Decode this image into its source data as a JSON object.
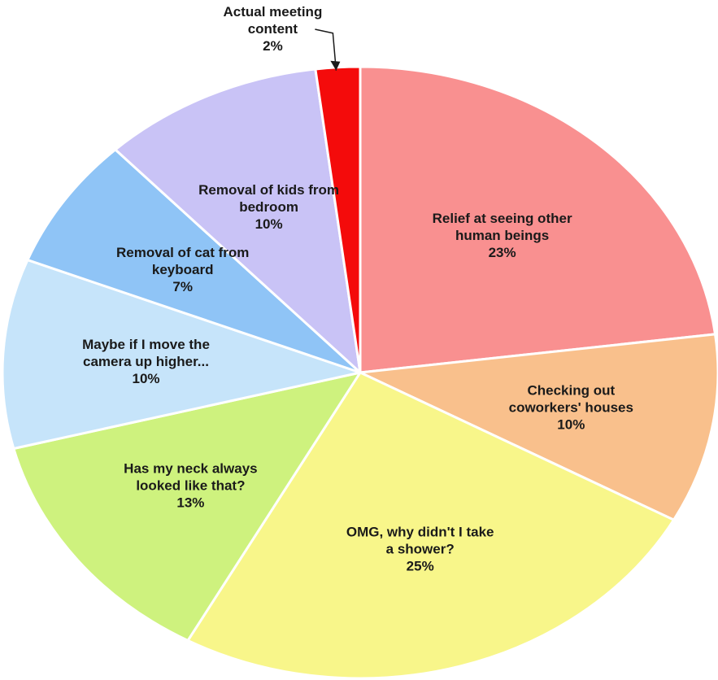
{
  "chart_data": {
    "type": "pie",
    "title": "",
    "start_angle_deg": 0,
    "direction": "clockwise",
    "slices": [
      {
        "label_lines": [
          "Relief at seeing other",
          "human beings"
        ],
        "percent_label": "23%",
        "value": 23,
        "color": "#F99090"
      },
      {
        "label_lines": [
          "Checking out",
          "coworkers' houses"
        ],
        "percent_label": "10%",
        "value": 10,
        "color": "#F9C08C"
      },
      {
        "label_lines": [
          "OMG, why didn't I take",
          "a shower?"
        ],
        "percent_label": "25%",
        "value": 25,
        "color": "#F8F68A"
      },
      {
        "label_lines": [
          "Has my neck always",
          "looked like that?"
        ],
        "percent_label": "13%",
        "value": 13,
        "color": "#CEF27E"
      },
      {
        "label_lines": [
          "Maybe if I move the",
          "camera up higher..."
        ],
        "percent_label": "10%",
        "value": 10,
        "color": "#C6E4FA"
      },
      {
        "label_lines": [
          "Removal of cat from",
          "keyboard"
        ],
        "percent_label": "7%",
        "value": 7,
        "color": "#8FC4F6"
      },
      {
        "label_lines": [
          "Removal of kids from",
          "bedroom"
        ],
        "percent_label": "10%",
        "value": 10,
        "color": "#C9C3F6"
      },
      {
        "label_lines": [
          "Actual meeting",
          "content"
        ],
        "percent_label": "2%",
        "value": 2,
        "color": "#F40B0B",
        "label_outside": true
      }
    ]
  }
}
